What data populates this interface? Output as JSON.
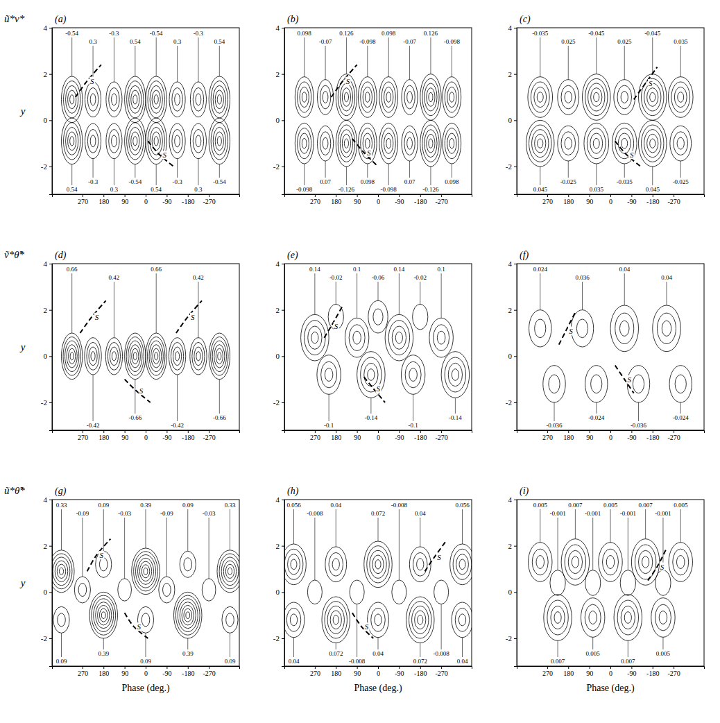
{
  "chart_data": [
    {
      "type": "contour",
      "panel": "(a)",
      "row_label": "ũ*v*",
      "y_label": "y",
      "xlim": [
        400,
        -400
      ],
      "ylim": [
        -3.2,
        4
      ],
      "xticks": [
        270,
        180,
        90,
        0,
        -90,
        -180,
        -270
      ],
      "yticks": [
        -2,
        0,
        2,
        4
      ],
      "levels": [
        0.06,
        0.18,
        0.3,
        0.42,
        0.54
      ],
      "centers": {
        "x": [
          315,
          225,
          135,
          45,
          -45,
          -135,
          -225,
          -315,
          315,
          225,
          135,
          45,
          -45,
          -135,
          -225,
          -315
        ],
        "y": [
          0.9,
          0.9,
          0.9,
          0.9,
          0.9,
          0.9,
          0.9,
          0.9,
          -0.9,
          -0.9,
          -0.9,
          -0.9,
          -0.9,
          -0.9,
          -0.9,
          -0.9
        ],
        "values": [
          -0.54,
          0.3,
          -0.3,
          0.54,
          -0.54,
          0.3,
          -0.3,
          0.54,
          0.54,
          -0.3,
          0.3,
          -0.54,
          0.54,
          -0.3,
          0.3,
          -0.54
        ]
      },
      "s_curves": [
        {
          "label": "S",
          "points": [
            [
              300,
              1.0
            ],
            [
              250,
              1.7
            ],
            [
              190,
              2.4
            ]
          ]
        },
        {
          "label": "S",
          "points": [
            [
              -10,
              -0.9
            ],
            [
              -60,
              -1.5
            ],
            [
              -120,
              -2.0
            ]
          ]
        }
      ]
    },
    {
      "type": "contour",
      "panel": "(b)",
      "xlim": [
        400,
        -400
      ],
      "ylim": [
        -3.2,
        4
      ],
      "xticks": [
        270,
        180,
        90,
        0,
        -90,
        -180,
        -270
      ],
      "yticks": [
        -2,
        0,
        2,
        4
      ],
      "levels": [
        0.014,
        0.042,
        0.07,
        0.098,
        0.126
      ],
      "centers": {
        "x": [
          315,
          225,
          135,
          45,
          -45,
          -135,
          -225,
          -315,
          315,
          225,
          135,
          45,
          -45,
          -135,
          -225,
          -315
        ],
        "y": [
          1.0,
          1.0,
          1.0,
          1.0,
          1.0,
          1.0,
          1.0,
          1.0,
          -1.0,
          -1.0,
          -1.0,
          -1.0,
          -1.0,
          -1.0,
          -1.0,
          -1.0
        ],
        "values": [
          0.098,
          -0.07,
          0.126,
          -0.098,
          0.098,
          -0.07,
          0.126,
          -0.098,
          -0.098,
          0.07,
          -0.126,
          0.098,
          -0.098,
          0.07,
          -0.126,
          0.098
        ]
      },
      "s_curves": [
        {
          "label": "S",
          "points": [
            [
              200,
              1.0
            ],
            [
              150,
              1.7
            ],
            [
              90,
              2.4
            ]
          ]
        },
        {
          "label": "S",
          "points": [
            [
              110,
              -0.8
            ],
            [
              60,
              -1.4
            ],
            [
              0,
              -2.0
            ]
          ]
        }
      ]
    },
    {
      "type": "contour",
      "panel": "(c)",
      "xlim": [
        400,
        -400
      ],
      "ylim": [
        -3.2,
        4
      ],
      "xticks": [
        270,
        180,
        90,
        0,
        -90,
        -180,
        -270
      ],
      "yticks": [
        -2,
        0,
        2,
        4
      ],
      "levels": [
        0.005,
        0.015,
        0.025,
        0.035,
        0.045
      ],
      "centers": {
        "x": [
          300,
          180,
          60,
          -60,
          -180,
          -300,
          300,
          180,
          60,
          -60,
          -180,
          -300
        ],
        "y": [
          1.0,
          1.0,
          1.0,
          1.0,
          1.0,
          1.0,
          -1.0,
          -1.0,
          -1.0,
          -1.0,
          -1.0,
          -1.0
        ],
        "values": [
          -0.035,
          0.025,
          -0.045,
          0.025,
          -0.045,
          0.035,
          0.045,
          -0.025,
          0.035,
          -0.035,
          0.045,
          -0.025
        ]
      },
      "s_curves": [
        {
          "label": "S",
          "points": [
            [
              -100,
              0.9
            ],
            [
              -150,
              1.6
            ],
            [
              -200,
              2.3
            ]
          ]
        },
        {
          "label": "S",
          "points": [
            [
              -20,
              -0.9
            ],
            [
              -70,
              -1.5
            ],
            [
              -130,
              -2.0
            ]
          ]
        }
      ]
    },
    {
      "type": "contour",
      "panel": "(d)",
      "row_label": "ṽ*θ̃*",
      "y_label": "y",
      "xlim": [
        400,
        -400
      ],
      "ylim": [
        -3.2,
        4
      ],
      "xticks": [
        270,
        180,
        90,
        0,
        -90,
        -180,
        -270
      ],
      "yticks": [
        -2,
        0,
        2,
        4
      ],
      "levels": [
        0.06,
        0.18,
        0.3,
        0.42,
        0.54,
        0.66
      ],
      "centers": {
        "x": [
          315,
          225,
          135,
          45,
          -45,
          -135,
          -225,
          -315
        ],
        "y": [
          0,
          0,
          0,
          0,
          0,
          0,
          0,
          0
        ],
        "values": [
          0.66,
          -0.42,
          0.42,
          -0.66,
          0.66,
          -0.42,
          0.42,
          -0.66
        ]
      },
      "s_curves": [
        {
          "label": "S",
          "points": [
            [
              280,
              1.0
            ],
            [
              230,
              1.7
            ],
            [
              170,
              2.4
            ]
          ]
        },
        {
          "label": "S",
          "points": [
            [
              -130,
              1.0
            ],
            [
              -180,
              1.7
            ],
            [
              -240,
              2.4
            ]
          ]
        },
        {
          "label": "S",
          "points": [
            [
              90,
              -1.0
            ],
            [
              40,
              -1.5
            ],
            [
              -20,
              -2.0
            ]
          ]
        }
      ]
    },
    {
      "type": "contour",
      "panel": "(e)",
      "xlim": [
        400,
        -400
      ],
      "ylim": [
        -3.2,
        4
      ],
      "xticks": [
        270,
        180,
        90,
        0,
        -90,
        -180,
        -270
      ],
      "yticks": [
        -2,
        0,
        2,
        4
      ],
      "levels": [
        0.02,
        0.06,
        0.1,
        0.14
      ],
      "centers": {
        "x": [
          270,
          90,
          -90,
          -270,
          210,
          30,
          -150,
          -330,
          180,
          0,
          -180
        ],
        "y": [
          0.8,
          0.8,
          0.8,
          0.8,
          -0.8,
          -0.8,
          -0.8,
          -0.8,
          1.7,
          1.7,
          1.7
        ],
        "values": [
          0.14,
          0.1,
          0.14,
          0.1,
          -0.1,
          -0.14,
          -0.1,
          -0.14,
          -0.02,
          -0.06,
          -0.02
        ]
      },
      "s_curves": [
        {
          "label": "S",
          "points": [
            [
              230,
              0.8
            ],
            [
              200,
              1.3
            ],
            [
              150,
              2.2
            ]
          ]
        },
        {
          "label": "S",
          "points": [
            [
              60,
              -0.9
            ],
            [
              20,
              -1.4
            ],
            [
              -30,
              -2.0
            ]
          ]
        }
      ]
    },
    {
      "type": "contour",
      "panel": "(f)",
      "xlim": [
        400,
        -400
      ],
      "ylim": [
        -3.2,
        4
      ],
      "xticks": [
        270,
        180,
        90,
        0,
        -90,
        -180,
        -270
      ],
      "yticks": [
        -2,
        0,
        2,
        4
      ],
      "levels": [
        0.008,
        0.024,
        0.04
      ],
      "centers": {
        "x": [
          300,
          120,
          -60,
          -240,
          240,
          60,
          -120,
          -300
        ],
        "y": [
          1.2,
          1.2,
          1.2,
          1.2,
          -1.2,
          -1.2,
          -1.2,
          -1.2
        ],
        "values": [
          0.024,
          0.036,
          0.04,
          0.04,
          -0.036,
          -0.024,
          -0.036,
          -0.024
        ]
      },
      "s_curves": [
        {
          "label": "S",
          "points": [
            [
              220,
              0.5
            ],
            [
              190,
              1.1
            ],
            [
              150,
              1.9
            ]
          ]
        },
        {
          "label": "S",
          "points": [
            [
              -20,
              -0.4
            ],
            [
              -60,
              -1.0
            ],
            [
              -100,
              -1.6
            ]
          ]
        }
      ]
    },
    {
      "type": "contour",
      "panel": "(g)",
      "row_label": "ũ*θ̃*",
      "y_label": "y",
      "x_label": "Phase (deg.)",
      "xlim": [
        400,
        -400
      ],
      "ylim": [
        -3.2,
        4
      ],
      "xticks": [
        270,
        180,
        90,
        0,
        -90,
        -180,
        -270
      ],
      "yticks": [
        -2,
        0,
        2,
        4
      ],
      "levels": [
        0.03,
        0.09,
        0.15,
        0.21,
        0.27,
        0.33,
        0.39
      ],
      "centers": {
        "x": [
          360,
          180,
          0,
          -180,
          -360,
          360,
          180,
          0,
          -180,
          -360,
          270,
          90,
          -90,
          -270
        ],
        "y": [
          0.9,
          1.2,
          0.9,
          1.2,
          0.9,
          -1.2,
          -1.0,
          -1.2,
          -1.0,
          -1.2,
          0.1,
          0.1,
          0.1,
          0.1
        ],
        "values": [
          0.33,
          0.09,
          0.39,
          0.09,
          0.33,
          0.09,
          0.39,
          0.09,
          0.39,
          0.09,
          -0.09,
          -0.03,
          -0.09,
          -0.03
        ]
      },
      "s_curves": [
        {
          "label": "S",
          "points": [
            [
              250,
              0.9
            ],
            [
              210,
              1.6
            ],
            [
              150,
              2.3
            ]
          ]
        },
        {
          "label": "S",
          "points": [
            [
              90,
              -0.9
            ],
            [
              50,
              -1.5
            ],
            [
              -10,
              -2.0
            ]
          ]
        }
      ]
    },
    {
      "type": "contour",
      "panel": "(h)",
      "x_label": "Phase (deg.)",
      "xlim": [
        400,
        -400
      ],
      "ylim": [
        -3.2,
        4
      ],
      "xticks": [
        270,
        180,
        90,
        0,
        -90,
        -180,
        -270
      ],
      "yticks": [
        -2,
        0,
        2,
        4
      ],
      "levels": [
        0.008,
        0.024,
        0.04,
        0.056,
        0.072
      ],
      "centers": {
        "x": [
          360,
          180,
          0,
          -180,
          -360,
          360,
          180,
          0,
          -180,
          -360,
          270,
          90,
          -90,
          -270
        ],
        "y": [
          1.2,
          1.2,
          1.2,
          1.2,
          1.2,
          -1.2,
          -1.2,
          -1.2,
          -1.2,
          -1.2,
          0,
          0,
          0,
          0
        ],
        "values": [
          0.056,
          0.04,
          0.072,
          0.04,
          0.056,
          0.04,
          0.072,
          0.04,
          0.072,
          0.04,
          -0.008,
          -0.008,
          -0.008,
          -0.008
        ]
      },
      "s_curves": [
        {
          "label": "S",
          "points": [
            [
              -200,
              0.9
            ],
            [
              -240,
              1.5
            ],
            [
              -290,
              2.2
            ]
          ]
        },
        {
          "label": "S",
          "points": [
            [
              110,
              -0.9
            ],
            [
              70,
              -1.5
            ],
            [
              20,
              -2.0
            ]
          ]
        }
      ]
    },
    {
      "type": "contour",
      "panel": "(i)",
      "x_label": "Phase (deg.)",
      "xlim": [
        400,
        -400
      ],
      "ylim": [
        -3.2,
        4
      ],
      "xticks": [
        270,
        180,
        90,
        0,
        -90,
        -180,
        -270
      ],
      "yticks": [
        -2,
        0,
        2,
        4
      ],
      "levels": [
        0.001,
        0.003,
        0.005,
        0.007
      ],
      "centers": {
        "x": [
          300,
          150,
          0,
          -150,
          -300,
          225,
          75,
          -75,
          -225,
          225,
          75,
          -75,
          -225
        ],
        "y": [
          1.3,
          1.3,
          1.3,
          1.3,
          1.3,
          -1.1,
          -1.1,
          -1.1,
          -1.1,
          0.4,
          0.4,
          0.4,
          0.4
        ],
        "values": [
          0.005,
          0.007,
          0.005,
          0.007,
          0.005,
          0.007,
          0.005,
          0.007,
          0.005,
          -0.001,
          -0.001,
          -0.001,
          -0.001
        ]
      },
      "s_curves": [
        {
          "label": "S",
          "points": [
            [
              -160,
              0.5
            ],
            [
              -200,
              1.1
            ],
            [
              -240,
              1.9
            ]
          ]
        }
      ]
    }
  ]
}
